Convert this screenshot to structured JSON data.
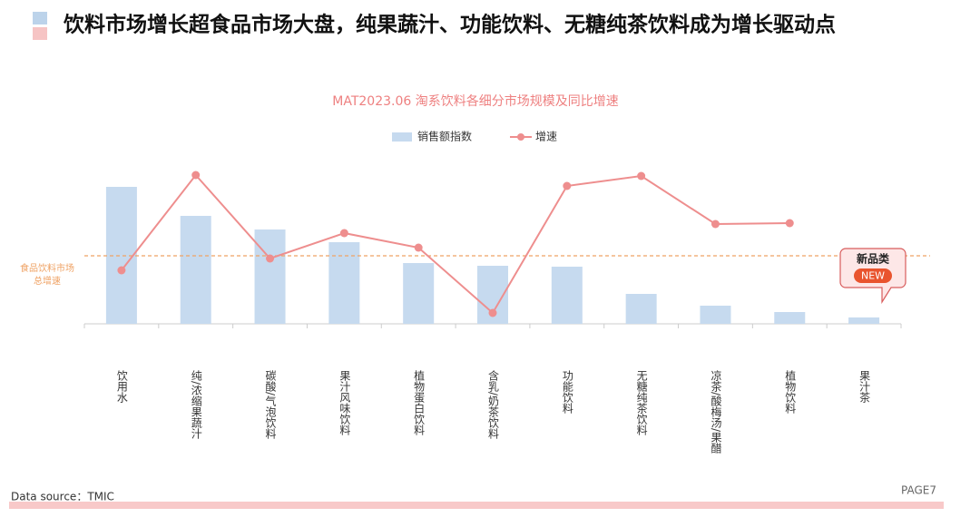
{
  "header": {
    "title": "饮料市场增长超食品市场大盘，纯果蔬汁、功能饮料、无糖纯茶饮料成为增长驱动点"
  },
  "chart_data": {
    "type": "bar_line",
    "title": "MAT2023.06  淘系饮料各细分市场规模及同比增速",
    "categories": [
      "饮用水",
      "纯/浓缩果蔬汁",
      "碳酸/气泡饮料",
      "果汁风味饮料",
      "植物蛋白饮料",
      "含乳/奶茶饮料",
      "功能饮料",
      "无糖纯茶饮料",
      "凉茶/酸梅汤/果醋",
      "植物饮料",
      "果汁茶"
    ],
    "series": [
      {
        "name": "销售额指数",
        "type": "bar",
        "color": "#c6daef",
        "values": [
          151,
          119,
          104,
          90,
          67,
          64,
          63,
          33,
          20,
          13,
          7
        ]
      },
      {
        "name": "增速",
        "type": "line",
        "axis": "y2",
        "color": "#ee8e8e",
        "values": [
          59,
          164,
          72,
          100,
          84,
          12,
          152,
          163,
          110,
          111,
          null
        ]
      }
    ],
    "ylim": [
      0,
      200
    ],
    "y2lim": [
      0,
      200
    ],
    "reference": {
      "label": "食品饮料市场总增速",
      "value": 75,
      "color": "#efa264"
    },
    "callout": {
      "text": "新品类",
      "badge": "NEW"
    },
    "source": "Data source：TMIC",
    "page": "PAGE7"
  }
}
